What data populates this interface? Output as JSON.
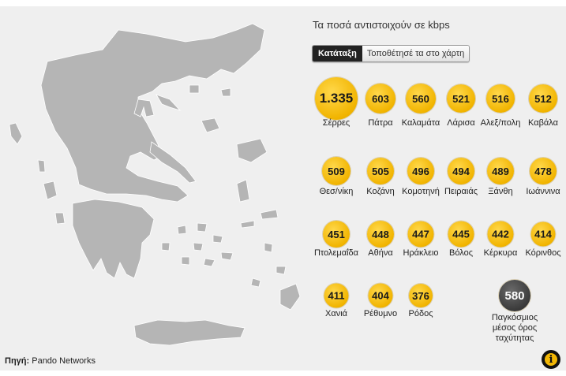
{
  "header": {
    "title": "Τα ποσά αντιστοιχούν σε kbps"
  },
  "tabs": [
    {
      "label": "Κατάταξη",
      "active": true
    },
    {
      "label": "Τοποθέτησέ τα στο χάρτη",
      "active": false
    }
  ],
  "source": {
    "prefix": "Πηγή:",
    "name": "Pando Networks"
  },
  "colors": {
    "bubble": "#f1b400",
    "global_bubble": "#3a3a3a",
    "map": "#b5b5b5"
  },
  "cities": [
    {
      "value": "1.335",
      "name": "Σέρρες"
    },
    {
      "value": "603",
      "name": "Πάτρα"
    },
    {
      "value": "560",
      "name": "Καλαμάτα"
    },
    {
      "value": "521",
      "name": "Λάρισα"
    },
    {
      "value": "516",
      "name": "Αλεξ/πολη"
    },
    {
      "value": "512",
      "name": "Καβάλα"
    },
    {
      "value": "509",
      "name": "Θεσ/νίκη"
    },
    {
      "value": "505",
      "name": "Κοζάνη"
    },
    {
      "value": "496",
      "name": "Κομοτηνή"
    },
    {
      "value": "494",
      "name": "Πειραιάς"
    },
    {
      "value": "489",
      "name": "Ξάνθη"
    },
    {
      "value": "478",
      "name": "Ιωάννινα"
    },
    {
      "value": "451",
      "name": "Πτολεμαΐδα"
    },
    {
      "value": "448",
      "name": "Αθήνα"
    },
    {
      "value": "447",
      "name": "Ηράκλειο"
    },
    {
      "value": "445",
      "name": "Βόλος"
    },
    {
      "value": "442",
      "name": "Κέρκυρα"
    },
    {
      "value": "414",
      "name": "Κόρινθος"
    },
    {
      "value": "411",
      "name": "Χανιά"
    },
    {
      "value": "404",
      "name": "Ρέθυμνο"
    },
    {
      "value": "376",
      "name": "Ρόδος"
    }
  ],
  "global": {
    "value": "580",
    "name": "Παγκόσμιος μέσος όρος ταχύτητας"
  },
  "icons": {
    "info": "info-icon",
    "info_glyph": "i"
  }
}
